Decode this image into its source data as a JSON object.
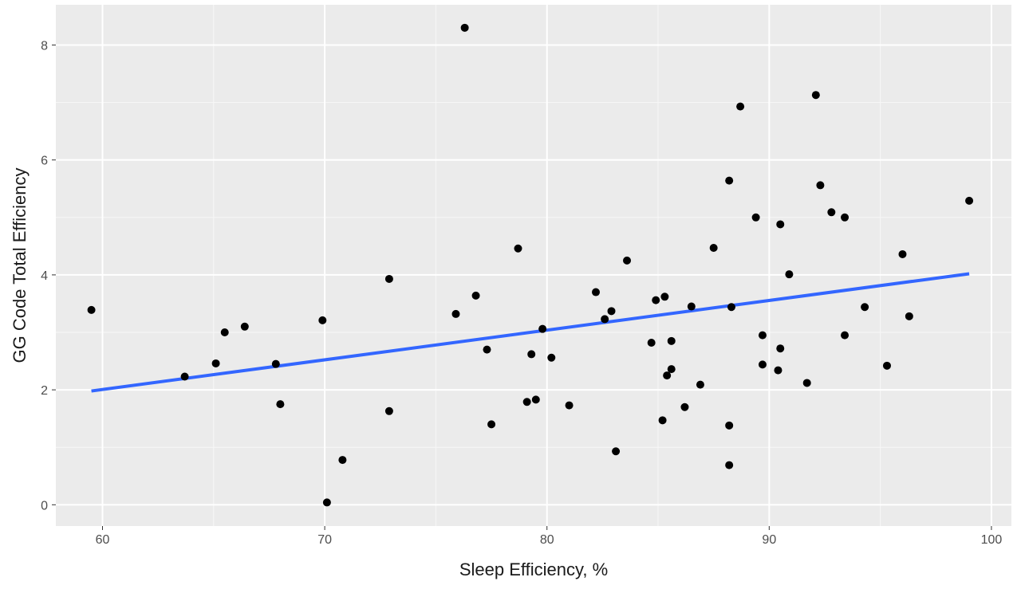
{
  "chart_data": {
    "type": "scatter",
    "title": "",
    "xlabel": "Sleep Efficiency, %",
    "ylabel": "GG Code Total Efficiency",
    "xlim": [
      57.9,
      100.9
    ],
    "ylim": [
      -0.37,
      8.7
    ],
    "x_ticks": [
      60,
      70,
      80,
      90,
      100
    ],
    "x_tick_labels": [
      "60",
      "70",
      "80",
      "90",
      "100"
    ],
    "y_ticks": [
      0,
      2,
      4,
      6,
      8
    ],
    "y_tick_labels": [
      "0",
      "2",
      "4",
      "6",
      "8"
    ],
    "grid": true,
    "panel_background": "#ebebeb",
    "point_color": "#000000",
    "points": [
      {
        "x": 59.5,
        "y": 3.39
      },
      {
        "x": 63.7,
        "y": 2.23
      },
      {
        "x": 65.1,
        "y": 2.46
      },
      {
        "x": 65.5,
        "y": 3.0
      },
      {
        "x": 66.4,
        "y": 3.1
      },
      {
        "x": 67.8,
        "y": 2.45
      },
      {
        "x": 68.0,
        "y": 1.75
      },
      {
        "x": 69.9,
        "y": 3.21
      },
      {
        "x": 70.1,
        "y": 0.04
      },
      {
        "x": 70.8,
        "y": 0.78
      },
      {
        "x": 72.9,
        "y": 3.93
      },
      {
        "x": 72.9,
        "y": 1.63
      },
      {
        "x": 75.9,
        "y": 3.32
      },
      {
        "x": 76.3,
        "y": 8.3
      },
      {
        "x": 76.8,
        "y": 3.64
      },
      {
        "x": 77.3,
        "y": 2.7
      },
      {
        "x": 77.5,
        "y": 1.4
      },
      {
        "x": 78.7,
        "y": 4.46
      },
      {
        "x": 79.1,
        "y": 1.79
      },
      {
        "x": 79.3,
        "y": 2.62
      },
      {
        "x": 79.5,
        "y": 1.83
      },
      {
        "x": 79.8,
        "y": 3.06
      },
      {
        "x": 80.2,
        "y": 2.56
      },
      {
        "x": 81.0,
        "y": 1.73
      },
      {
        "x": 82.2,
        "y": 3.7
      },
      {
        "x": 82.6,
        "y": 3.23
      },
      {
        "x": 82.9,
        "y": 3.37
      },
      {
        "x": 83.1,
        "y": 0.93
      },
      {
        "x": 83.6,
        "y": 4.25
      },
      {
        "x": 84.7,
        "y": 2.82
      },
      {
        "x": 84.9,
        "y": 3.56
      },
      {
        "x": 85.2,
        "y": 1.47
      },
      {
        "x": 85.3,
        "y": 3.62
      },
      {
        "x": 85.4,
        "y": 2.25
      },
      {
        "x": 85.6,
        "y": 2.85
      },
      {
        "x": 85.6,
        "y": 2.36
      },
      {
        "x": 86.2,
        "y": 1.7
      },
      {
        "x": 86.5,
        "y": 3.45
      },
      {
        "x": 86.9,
        "y": 2.09
      },
      {
        "x": 87.5,
        "y": 4.47
      },
      {
        "x": 88.2,
        "y": 5.64
      },
      {
        "x": 88.2,
        "y": 1.38
      },
      {
        "x": 88.2,
        "y": 0.69
      },
      {
        "x": 88.3,
        "y": 3.44
      },
      {
        "x": 88.7,
        "y": 6.93
      },
      {
        "x": 89.4,
        "y": 5.0
      },
      {
        "x": 89.7,
        "y": 2.95
      },
      {
        "x": 89.7,
        "y": 2.44
      },
      {
        "x": 90.4,
        "y": 2.34
      },
      {
        "x": 90.5,
        "y": 4.88
      },
      {
        "x": 90.5,
        "y": 2.72
      },
      {
        "x": 90.9,
        "y": 4.01
      },
      {
        "x": 91.7,
        "y": 2.12
      },
      {
        "x": 92.1,
        "y": 7.13
      },
      {
        "x": 92.3,
        "y": 5.56
      },
      {
        "x": 92.8,
        "y": 5.09
      },
      {
        "x": 93.4,
        "y": 5.0
      },
      {
        "x": 93.4,
        "y": 2.95
      },
      {
        "x": 94.3,
        "y": 3.44
      },
      {
        "x": 95.3,
        "y": 2.42
      },
      {
        "x": 96.0,
        "y": 4.36
      },
      {
        "x": 96.3,
        "y": 3.28
      },
      {
        "x": 99.0,
        "y": 5.29
      }
    ],
    "fit_line": {
      "color": "#3366ff",
      "x": [
        59.5,
        99.0
      ],
      "y": [
        1.98,
        4.02
      ]
    }
  }
}
